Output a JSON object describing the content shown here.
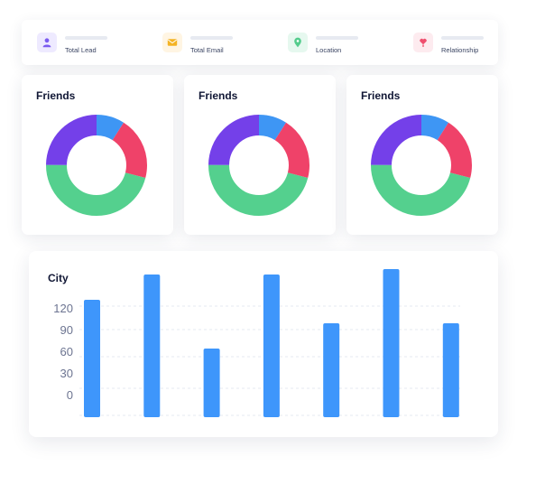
{
  "stats": [
    {
      "label": "Total Lead",
      "icon": "user-icon",
      "tint": "#eeeaff",
      "color": "#7b5cf0"
    },
    {
      "label": "Total Email",
      "icon": "mail-icon",
      "tint": "#fff5e3",
      "color": "#f4b324"
    },
    {
      "label": "Location",
      "icon": "location-pin-icon",
      "tint": "#e6f8ef",
      "color": "#53cc8c"
    },
    {
      "label": "Relationship",
      "icon": "heart-person-icon",
      "tint": "#fdebef",
      "color": "#ef4f6e"
    }
  ],
  "friends_cards": [
    {
      "title": "Friends"
    },
    {
      "title": "Friends"
    },
    {
      "title": "Friends"
    }
  ],
  "chart_data": [
    {
      "type": "pie",
      "title": "Friends",
      "values": [
        9,
        20,
        46,
        25
      ],
      "colors": [
        "#3e96f4",
        "#ef4269",
        "#54d08e",
        "#7440e9"
      ]
    },
    {
      "type": "pie",
      "title": "Friends",
      "values": [
        9,
        20,
        46,
        25
      ],
      "colors": [
        "#3e96f4",
        "#ef4269",
        "#54d08e",
        "#7440e9"
      ]
    },
    {
      "type": "pie",
      "title": "Friends",
      "values": [
        9,
        20,
        46,
        25
      ],
      "colors": [
        "#3e96f4",
        "#ef4269",
        "#54d08e",
        "#7440e9"
      ]
    },
    {
      "type": "bar",
      "title": "City",
      "y_ticks": [
        "120",
        "90",
        "60",
        "30",
        "0"
      ],
      "values": [
        130,
        158,
        76,
        158,
        104,
        164,
        104
      ],
      "grid": true,
      "color": "#3e96fb"
    }
  ]
}
